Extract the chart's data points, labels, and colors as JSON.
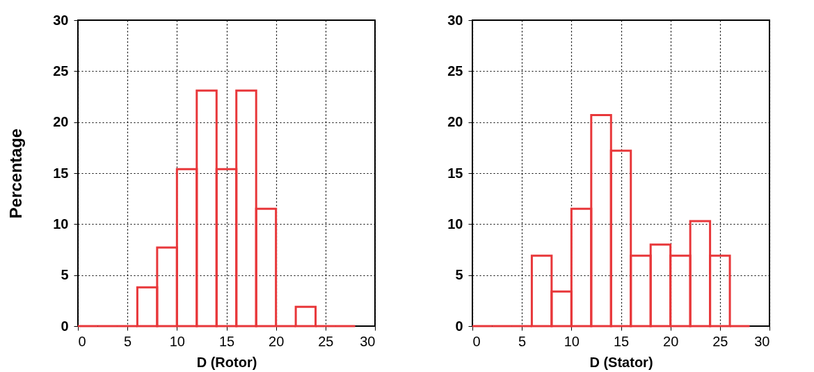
{
  "chart_data": [
    {
      "type": "histogram",
      "xlabel": "D (Rotor)",
      "ylabel": "Percentage",
      "bins": [
        0,
        2,
        4,
        6,
        8,
        10,
        12,
        14,
        16,
        18,
        20,
        22,
        24,
        26,
        28
      ],
      "values": [
        0,
        0,
        0,
        3.8,
        7.7,
        15.4,
        23.1,
        15.4,
        23.1,
        11.5,
        0,
        1.9,
        0,
        0
      ],
      "color": "#e8373a",
      "xlim": [
        0,
        30
      ],
      "ylim": [
        0,
        30
      ],
      "xticks": [
        0,
        5,
        10,
        15,
        20,
        25,
        30
      ],
      "yticks": [
        0,
        5,
        10,
        15,
        20,
        25,
        30
      ],
      "grid": true
    },
    {
      "type": "histogram",
      "xlabel": "D (Stator)",
      "bins": [
        0,
        2,
        4,
        6,
        8,
        10,
        12,
        14,
        16,
        18,
        20,
        22,
        24,
        26,
        28
      ],
      "values": [
        0,
        0,
        0,
        6.9,
        3.4,
        11.5,
        20.7,
        17.2,
        6.9,
        8.0,
        6.9,
        10.3,
        6.9,
        0
      ],
      "color": "#e8373a",
      "xlim": [
        0,
        30
      ],
      "ylim": [
        0,
        30
      ],
      "xticks": [
        0,
        5,
        10,
        15,
        20,
        25,
        30
      ],
      "yticks": [
        0,
        5,
        10,
        15,
        20,
        25,
        30
      ],
      "grid": true
    }
  ]
}
